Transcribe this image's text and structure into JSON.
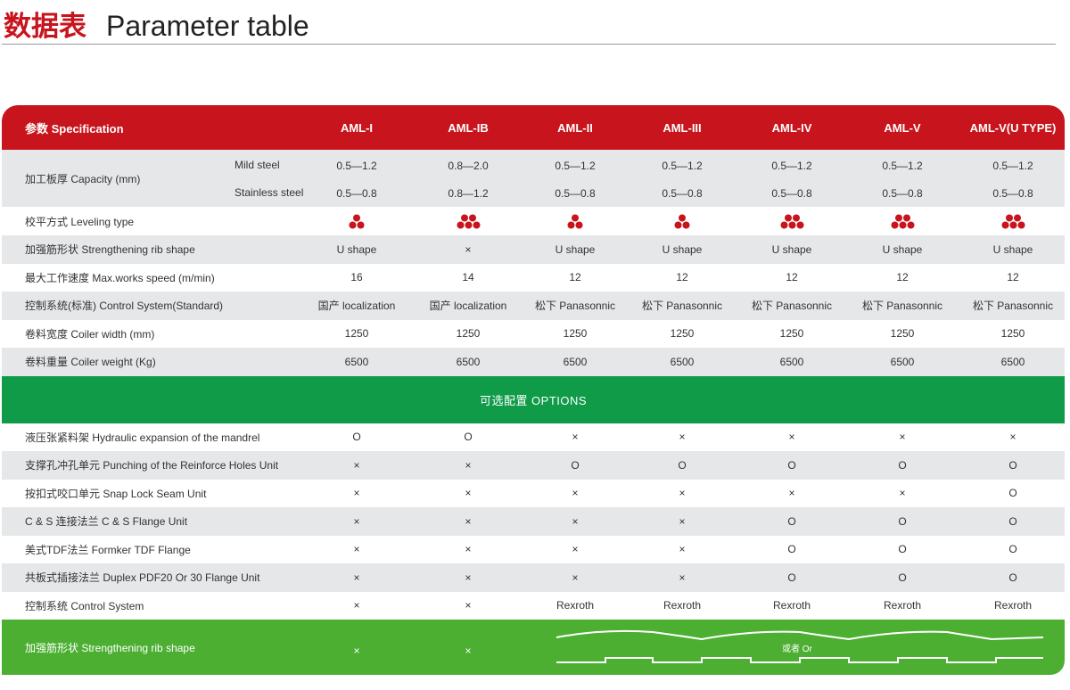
{
  "title": {
    "cn": "数据表",
    "en": "Parameter table"
  },
  "header": {
    "label": "参数 Specification",
    "models": [
      "AML-I",
      "AML-IB",
      "AML-II",
      "AML-III",
      "AML-IV",
      "AML-V",
      "AML-V(U TYPE)"
    ]
  },
  "capacity": {
    "label": "加工板厚 Capacity (mm)",
    "mild_label": "Mild steel",
    "stainless_label": "Stainless steel",
    "mild": [
      "0.5—1.2",
      "0.8—2.0",
      "0.5—1.2",
      "0.5—1.2",
      "0.5—1.2",
      "0.5—1.2",
      "0.5—1.2"
    ],
    "stainless": [
      "0.5—0.8",
      "0.8—1.2",
      "0.5—0.8",
      "0.5—0.8",
      "0.5—0.8",
      "0.5—0.8",
      "0.5—0.8"
    ]
  },
  "leveling": {
    "label": "校平方式 Leveling type",
    "dot_counts": [
      3,
      5,
      3,
      3,
      5,
      5,
      5
    ],
    "dot_color": "#c8141c"
  },
  "spec_rows": [
    {
      "label": "加强筋形状 Strengthening rib shape",
      "values": [
        "U shape",
        "×",
        "U shape",
        "U shape",
        "U shape",
        "U shape",
        "U shape"
      ]
    },
    {
      "label": "最大工作速度 Max.works speed (m/min)",
      "values": [
        "16",
        "14",
        "12",
        "12",
        "12",
        "12",
        "12"
      ]
    },
    {
      "label": "控制系统(标准) Control System(Standard)",
      "values": [
        "国产 localization",
        "国产 localization",
        "松下 Panasonnic",
        "松下 Panasonnic",
        "松下 Panasonnic",
        "松下 Panasonnic",
        "松下 Panasonnic"
      ]
    },
    {
      "label": "卷料宽度 Coiler width (mm)",
      "values": [
        "1250",
        "1250",
        "1250",
        "1250",
        "1250",
        "1250",
        "1250"
      ]
    },
    {
      "label": "卷料重量 Coiler weight (Kg)",
      "values": [
        "6500",
        "6500",
        "6500",
        "6500",
        "6500",
        "6500",
        "6500"
      ]
    }
  ],
  "options_title": "可选配置 OPTIONS",
  "option_rows": [
    {
      "label": "液压张紧料架 Hydraulic expansion of the mandrel",
      "values": [
        "O",
        "O",
        "×",
        "×",
        "×",
        "×",
        "×"
      ]
    },
    {
      "label": "支撑孔冲孔单元 Punching of the Reinforce Holes Unit",
      "values": [
        "×",
        "×",
        "O",
        "O",
        "O",
        "O",
        "O"
      ]
    },
    {
      "label": "按扣式咬口单元 Snap Lock Seam Unit",
      "values": [
        "×",
        "×",
        "×",
        "×",
        "×",
        "×",
        "O"
      ]
    },
    {
      "label": "C & S 连接法兰 C & S Flange Unit",
      "values": [
        "×",
        "×",
        "×",
        "×",
        "O",
        "O",
        "O"
      ]
    },
    {
      "label": "美式TDF法兰 Formker TDF Flange",
      "values": [
        "×",
        "×",
        "×",
        "×",
        "O",
        "O",
        "O"
      ]
    },
    {
      "label": "共板式插接法兰 Duplex PDF20 Or 30 Flange Unit",
      "values": [
        "×",
        "×",
        "×",
        "×",
        "O",
        "O",
        "O"
      ]
    },
    {
      "label": "控制系统 Control System",
      "values": [
        "×",
        "×",
        "Rexroth",
        "Rexroth",
        "Rexroth",
        "Rexroth",
        "Rexroth"
      ]
    }
  ],
  "bottom": {
    "label": "加强筋形状 Strengthening rib shape",
    "values": [
      "×",
      "×"
    ],
    "or_label": "或者 Or"
  },
  "colors": {
    "red": "#c8141c",
    "green_band": "#0f9b48",
    "green_bottom": "#4caf32",
    "gray_row": "#e6e7e9"
  }
}
